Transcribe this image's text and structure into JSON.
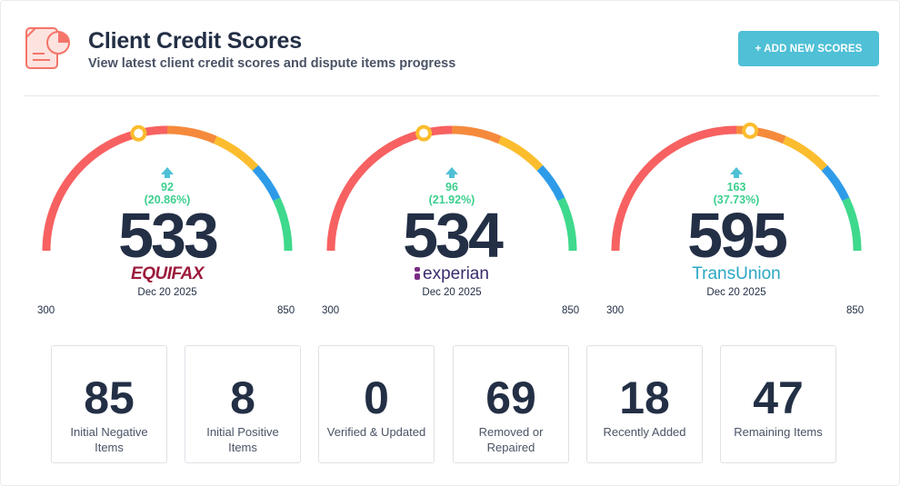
{
  "header": {
    "title": "Client Credit Scores",
    "subtitle": "View latest client credit scores and dispute items progress",
    "add_button_label": "+ ADD NEW SCORES",
    "icon": "credit-report-icon"
  },
  "gauge_range": {
    "min_label": "300",
    "max_label": "850",
    "min": 300,
    "max": 850
  },
  "gauge_colors": [
    "#f76161",
    "#f58a3c",
    "#fbbd2e",
    "#2e9be8",
    "#3ed98c"
  ],
  "bureaus": [
    {
      "name": "EQUIFAX",
      "score": 533,
      "score_label": "533",
      "delta": "92",
      "delta_pct": "(20.86%)",
      "date": "Dec 20 2025"
    },
    {
      "name": "experian",
      "score": 534,
      "score_label": "534",
      "delta": "96",
      "delta_pct": "(21.92%)",
      "date": "Dec 20 2025"
    },
    {
      "name": "TransUnion",
      "score": 595,
      "score_label": "595",
      "delta": "163",
      "delta_pct": "(37.73%)",
      "date": "Dec 20 2025"
    }
  ],
  "stats": [
    {
      "value": "85",
      "label": "Initial Negative Items"
    },
    {
      "value": "8",
      "label": "Initial Positive Items"
    },
    {
      "value": "0",
      "label": "Verified & Updated"
    },
    {
      "value": "69",
      "label": "Removed or Repaired"
    },
    {
      "value": "18",
      "label": "Recently Added"
    },
    {
      "value": "47",
      "label": "Remaining Items"
    }
  ]
}
